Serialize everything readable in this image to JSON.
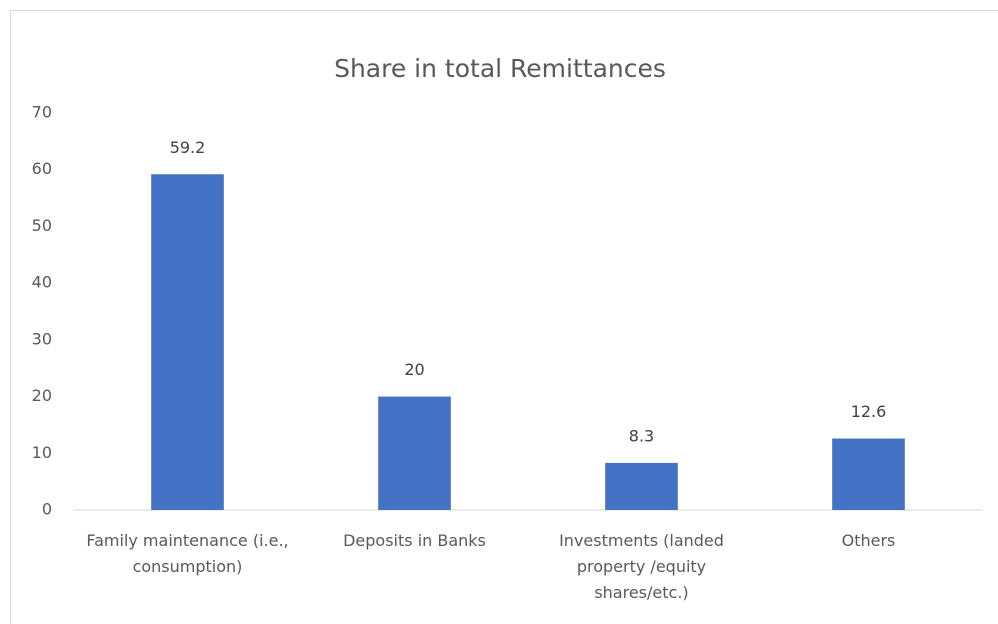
{
  "chart_data": {
    "type": "bar",
    "title": "Share in total Remittances",
    "categories": [
      "Family maintenance (i.e., consumption)",
      "Deposits in Banks",
      "Investments (landed property /equity shares/etc.)",
      "Others"
    ],
    "values": [
      59.2,
      20,
      8.3,
      12.6
    ],
    "color": "#4472c4",
    "ylim": [
      0,
      70
    ],
    "yticks": [
      0,
      10,
      20,
      30,
      40,
      50,
      60,
      70
    ],
    "grid": false
  }
}
